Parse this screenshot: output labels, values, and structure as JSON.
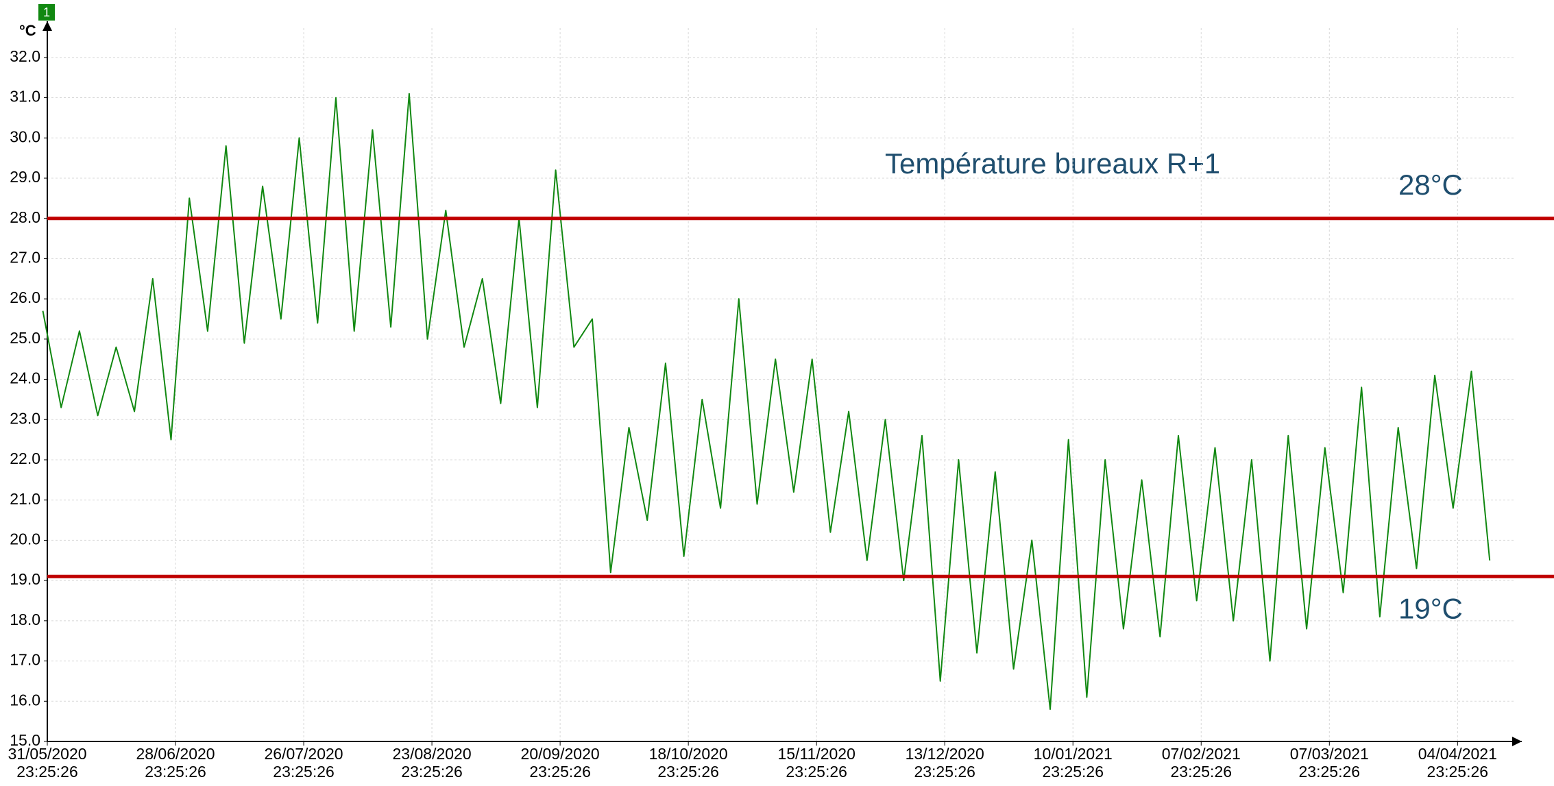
{
  "chart_data": {
    "type": "line",
    "y_label": "°C",
    "badge": "1",
    "title": "Température bureaux R+1",
    "xlim": [
      "2020-05-31T23:25:26",
      "2021-04-19T00:00:00"
    ],
    "xticks": [
      {
        "value": "2020-05-31T23:25:26",
        "label": "31/05/2020\n23:25:26"
      },
      {
        "value": "2020-06-28T23:25:26",
        "label": "28/06/2020\n23:25:26"
      },
      {
        "value": "2020-07-26T23:25:26",
        "label": "26/07/2020\n23:25:26"
      },
      {
        "value": "2020-08-23T23:25:26",
        "label": "23/08/2020\n23:25:26"
      },
      {
        "value": "2020-09-20T23:25:26",
        "label": "20/09/2020\n23:25:26"
      },
      {
        "value": "2020-10-18T23:25:26",
        "label": "18/10/2020\n23:25:26"
      },
      {
        "value": "2020-11-15T23:25:26",
        "label": "15/11/2020\n23:25:26"
      },
      {
        "value": "2020-12-13T23:25:26",
        "label": "13/12/2020\n23:25:26"
      },
      {
        "value": "2021-01-10T23:25:26",
        "label": "10/01/2021\n23:25:26"
      },
      {
        "value": "2021-02-07T23:25:26",
        "label": "07/02/2021\n23:25:26"
      },
      {
        "value": "2021-03-07T23:25:26",
        "label": "07/03/2021\n23:25:26"
      },
      {
        "value": "2021-04-04T23:25:26",
        "label": "04/04/2021\n23:25:26"
      }
    ],
    "ylim": [
      15,
      32.9
    ],
    "yticks": [
      {
        "value": 15,
        "label": "15.0"
      },
      {
        "value": 16,
        "label": "16.0"
      },
      {
        "value": 17,
        "label": "17.0"
      },
      {
        "value": 18,
        "label": "18.0"
      },
      {
        "value": 19,
        "label": "19.0"
      },
      {
        "value": 20,
        "label": "20.0"
      },
      {
        "value": 21,
        "label": "21.0"
      },
      {
        "value": 22,
        "label": "22.0"
      },
      {
        "value": 23,
        "label": "23.0"
      },
      {
        "value": 24,
        "label": "24.0"
      },
      {
        "value": 25,
        "label": "25.0"
      },
      {
        "value": 26,
        "label": "26.0"
      },
      {
        "value": 27,
        "label": "27.0"
      },
      {
        "value": 28,
        "label": "28.0"
      },
      {
        "value": 29,
        "label": "29.0"
      },
      {
        "value": 30,
        "label": "30.0"
      },
      {
        "value": 31,
        "label": "31.0"
      },
      {
        "value": 32,
        "label": "32.0"
      }
    ],
    "grid": true,
    "reference_lines": [
      {
        "value": 28,
        "label": "28°C",
        "color": "#c00000"
      },
      {
        "value": 19.1,
        "label": "19°C",
        "color": "#c00000"
      }
    ],
    "x": [
      "2020-05-31",
      "2020-06-04",
      "2020-06-08",
      "2020-06-12",
      "2020-06-16",
      "2020-06-20",
      "2020-06-24",
      "2020-06-28",
      "2020-07-02",
      "2020-07-06",
      "2020-07-10",
      "2020-07-14",
      "2020-07-18",
      "2020-07-22",
      "2020-07-26",
      "2020-07-30",
      "2020-08-03",
      "2020-08-07",
      "2020-08-11",
      "2020-08-15",
      "2020-08-19",
      "2020-08-23",
      "2020-08-27",
      "2020-08-31",
      "2020-09-04",
      "2020-09-08",
      "2020-09-12",
      "2020-09-16",
      "2020-09-20",
      "2020-09-24",
      "2020-09-28",
      "2020-10-02",
      "2020-10-06",
      "2020-10-10",
      "2020-10-14",
      "2020-10-18",
      "2020-10-22",
      "2020-10-26",
      "2020-10-30",
      "2020-11-03",
      "2020-11-07",
      "2020-11-11",
      "2020-11-15",
      "2020-11-19",
      "2020-11-23",
      "2020-11-27",
      "2020-12-01",
      "2020-12-05",
      "2020-12-09",
      "2020-12-13",
      "2020-12-17",
      "2020-12-21",
      "2020-12-25",
      "2020-12-29",
      "2021-01-02",
      "2021-01-06",
      "2021-01-10",
      "2021-01-14",
      "2021-01-18",
      "2021-01-22",
      "2021-01-26",
      "2021-01-30",
      "2021-02-03",
      "2021-02-07",
      "2021-02-11",
      "2021-02-15",
      "2021-02-19",
      "2021-02-23",
      "2021-02-27",
      "2021-03-03",
      "2021-03-07",
      "2021-03-11",
      "2021-03-15",
      "2021-03-19",
      "2021-03-23",
      "2021-03-27",
      "2021-03-31",
      "2021-04-04",
      "2021-04-08",
      "2021-04-12"
    ],
    "series": [
      {
        "color": "#118811",
        "values": [
          25.7,
          23.3,
          25.2,
          23.1,
          24.8,
          23.2,
          26.5,
          22.5,
          28.5,
          25.2,
          29.8,
          24.9,
          28.8,
          25.5,
          30.0,
          25.4,
          31.0,
          25.2,
          30.2,
          25.3,
          31.1,
          25.0,
          28.2,
          24.8,
          26.5,
          23.4,
          28.0,
          23.3,
          29.2,
          24.8,
          25.5,
          19.2,
          22.8,
          20.5,
          24.4,
          19.6,
          23.5,
          20.8,
          26.0,
          20.9,
          24.5,
          21.2,
          24.5,
          20.2,
          23.2,
          19.5,
          23.0,
          19.0,
          22.6,
          16.5,
          22.0,
          17.2,
          21.7,
          16.8,
          20.0,
          15.8,
          22.5,
          16.1,
          22.0,
          17.8,
          21.5,
          17.6,
          22.6,
          18.5,
          22.3,
          18.0,
          22.0,
          17.0,
          22.6,
          17.8,
          22.3,
          18.7,
          23.8,
          18.1,
          22.8,
          19.3,
          24.1,
          20.8,
          24.2,
          19.5
        ]
      }
    ]
  }
}
